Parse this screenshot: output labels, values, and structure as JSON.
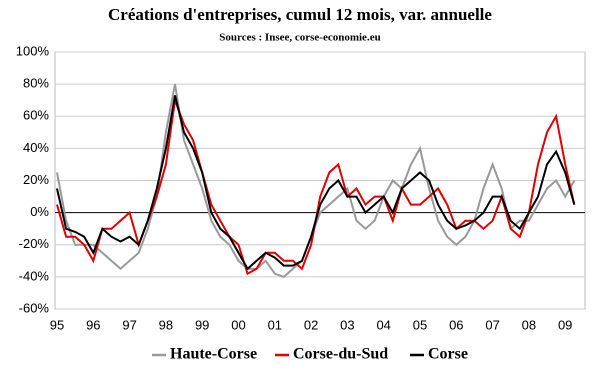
{
  "chart_data": {
    "type": "line",
    "title": "Créations d'entreprises, cumul 12 mois, var. annuelle",
    "subtitle": "Sources : Insee, corse-economie.eu",
    "categories": [
      "95",
      null,
      null,
      null,
      "96",
      null,
      null,
      null,
      "97",
      null,
      null,
      null,
      "98",
      null,
      null,
      null,
      "99",
      null,
      null,
      null,
      "00",
      null,
      null,
      null,
      "01",
      null,
      null,
      null,
      "02",
      null,
      null,
      null,
      "03",
      null,
      null,
      null,
      "04",
      null,
      null,
      null,
      "05",
      null,
      null,
      null,
      "06",
      null,
      null,
      null,
      "07",
      null,
      null,
      null,
      "08",
      null,
      null,
      null,
      "09",
      null
    ],
    "series": [
      {
        "name": "Haute-Corse",
        "color": "#999999",
        "values": [
          25,
          -5,
          -20,
          -20,
          -20,
          -25,
          -30,
          -35,
          -30,
          -25,
          -10,
          10,
          50,
          80,
          45,
          30,
          15,
          -5,
          -15,
          -20,
          -30,
          -35,
          -35,
          -30,
          -38,
          -40,
          -35,
          -30,
          -15,
          0,
          5,
          10,
          15,
          -5,
          -10,
          -5,
          10,
          20,
          15,
          30,
          40,
          15,
          -5,
          -15,
          -20,
          -15,
          -5,
          15,
          30,
          15,
          -10,
          -5,
          -5,
          5,
          15,
          20,
          10,
          20
        ]
      },
      {
        "name": "Corse-du-Sud",
        "color": "#e00000",
        "values": [
          5,
          -15,
          -15,
          -20,
          -30,
          -10,
          -10,
          -5,
          0,
          -20,
          -5,
          10,
          30,
          70,
          55,
          45,
          25,
          5,
          -5,
          -15,
          -20,
          -38,
          -35,
          -25,
          -25,
          -30,
          -30,
          -35,
          -20,
          10,
          25,
          30,
          10,
          15,
          5,
          10,
          10,
          -5,
          15,
          5,
          5,
          10,
          15,
          5,
          -10,
          -5,
          -5,
          -10,
          -5,
          10,
          -10,
          -15,
          0,
          30,
          50,
          60,
          30,
          5
        ]
      },
      {
        "name": "Corse",
        "color": "#000000",
        "values": [
          15,
          -10,
          -12,
          -15,
          -25,
          -10,
          -15,
          -18,
          -15,
          -20,
          -5,
          15,
          40,
          73,
          50,
          40,
          25,
          0,
          -10,
          -15,
          -25,
          -35,
          -30,
          -25,
          -28,
          -33,
          -33,
          -30,
          -15,
          5,
          15,
          20,
          10,
          10,
          0,
          5,
          10,
          0,
          15,
          20,
          25,
          20,
          5,
          -5,
          -10,
          -8,
          -5,
          0,
          10,
          10,
          -5,
          -10,
          0,
          10,
          30,
          38,
          25,
          5
        ]
      }
    ],
    "ylim": [
      -60,
      100
    ],
    "yticks": [
      {
        "value": -60,
        "label": "-60%"
      },
      {
        "value": -40,
        "label": "-40%"
      },
      {
        "value": -20,
        "label": "-20%"
      },
      {
        "value": 0,
        "label": "0%"
      },
      {
        "value": 20,
        "label": "20%"
      },
      {
        "value": 40,
        "label": "40%"
      },
      {
        "value": 60,
        "label": "60%"
      },
      {
        "value": 80,
        "label": "80%"
      },
      {
        "value": 100,
        "label": "100%"
      }
    ],
    "grid": true
  }
}
